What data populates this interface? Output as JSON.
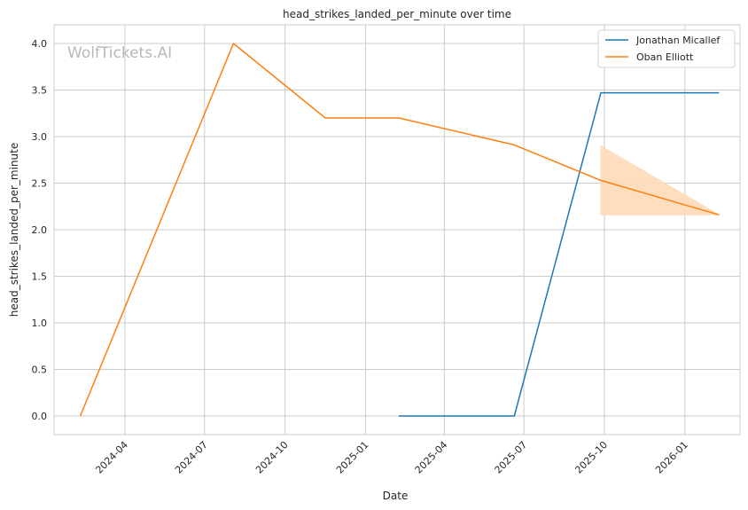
{
  "chart_data": {
    "type": "line",
    "title": "head_strikes_landed_per_minute over time",
    "xlabel": "Date",
    "ylabel": "head_strikes_landed_per_minute",
    "watermark": "WolfTickets.AI",
    "x_ticks": [
      "2024-04",
      "2024-07",
      "2024-10",
      "2025-01",
      "2025-04",
      "2025-07",
      "2025-10",
      "2026-01"
    ],
    "y_ticks": [
      "0.0",
      "0.5",
      "1.0",
      "1.5",
      "2.0",
      "2.5",
      "3.0",
      "3.5",
      "4.0"
    ],
    "xlim": [
      "2024-01-11",
      "2026-03-05"
    ],
    "ylim": [
      -0.2,
      4.2
    ],
    "grid": true,
    "legend_position": "top-right",
    "series": [
      {
        "name": "Jonathan Micallef",
        "color": "#1f77b4",
        "x": [
          "2025-02-08",
          "2025-06-20",
          "2025-09-27",
          "2026-02-09"
        ],
        "y": [
          0.0,
          0.0,
          3.47,
          3.47
        ]
      },
      {
        "name": "Oban Elliott",
        "color": "#ff7f0e",
        "x": [
          "2024-02-10",
          "2024-08-03",
          "2024-11-16",
          "2025-02-08",
          "2025-06-20",
          "2025-09-27",
          "2026-02-09"
        ],
        "y": [
          0.0,
          4.0,
          3.2,
          3.2,
          2.91,
          2.53,
          2.16
        ]
      }
    ],
    "confidence_band": {
      "series": "Oban Elliott",
      "color": "#ffdab8",
      "x": [
        "2025-09-27",
        "2026-02-09"
      ],
      "upper": [
        2.9,
        2.16
      ],
      "lower": [
        2.16,
        2.16
      ]
    }
  }
}
